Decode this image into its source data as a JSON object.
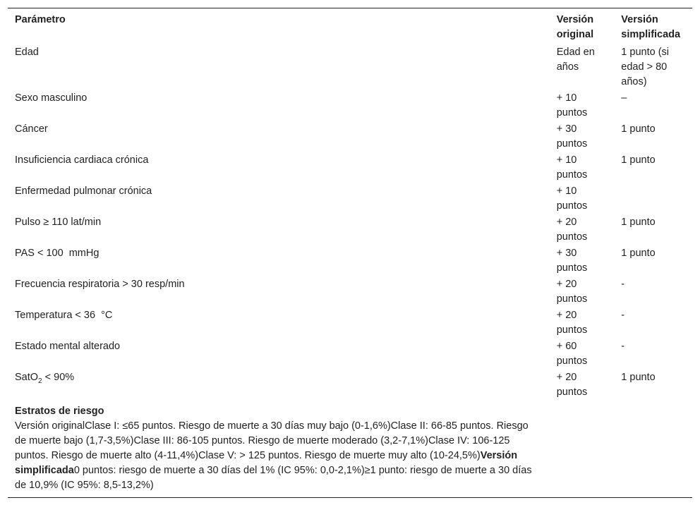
{
  "headers": [
    "Parámetro",
    "Versión original",
    "Versión simplificada"
  ],
  "rows": [
    {
      "param": "Edad",
      "original": "Edad en años",
      "simplified": "1 punto (si edad > 80 años)"
    },
    {
      "param": "Sexo masculino",
      "original": "+ 10 puntos",
      "simplified": "–"
    },
    {
      "param": "Cáncer",
      "original": "+ 30 puntos",
      "simplified": "1 punto"
    },
    {
      "param": "Insuficiencia cardiaca crónica",
      "original": "+ 10 puntos",
      "simplified": "1 punto"
    },
    {
      "param": "Enfermedad pulmonar crónica",
      "original": "+ 10 puntos",
      "simplified": ""
    },
    {
      "param": "Pulso ≥ 110 lat/min",
      "original": "+ 20 puntos",
      "simplified": "1 punto"
    },
    {
      "param": "PAS < 100  mmHg",
      "original": "+ 30 puntos",
      "simplified": "1 punto"
    },
    {
      "param": "Frecuencia respiratoria > 30 resp/min",
      "original": "+ 20 puntos",
      "simplified": "-"
    },
    {
      "param": "Temperatura < 36  °C",
      "original": "+ 20 puntos",
      "simplified": "-"
    },
    {
      "param": "Estado mental alterado",
      "original": "+ 60 puntos",
      "simplified": "-"
    },
    {
      "param_prefix": "SatO",
      "param_sub": "2",
      "param_suffix": " < 90%",
      "original": "+ 20 puntos",
      "simplified": "1 punto"
    }
  ],
  "footer": {
    "title": "Estratos de riesgo",
    "original_text": "Versión originalClase I: ≤65 puntos. Riesgo de muerte a 30 días muy bajo (0-1,6%)Clase II: 66-85 puntos. Riesgo de muerte bajo (1,7-3,5%)Clase III: 86-105 puntos. Riesgo de muerte moderado (3,2-7,1%)Clase IV: 106-125 puntos. Riesgo de muerte alto (4-11,4%)Clase V: > 125 puntos. Riesgo de muerte muy alto (10-24,5%)",
    "simplified_label": "Versión simplificada",
    "simplified_text": "0 puntos: riesgo de muerte a 30 días del 1% (IC 95%: 0,0-2,1%)≥1 punto: riesgo de muerte a 30 días de 10,9% (IC 95%: 8,5-13,2%)"
  }
}
